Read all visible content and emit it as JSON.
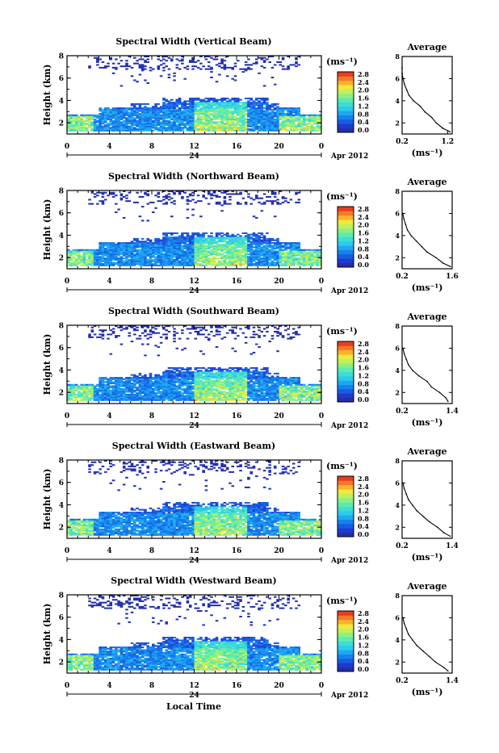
{
  "figure": {
    "date_label": "Apr 2012",
    "day_label": "24",
    "xlabel": "Local Time",
    "x_ticks": [
      "0",
      "4",
      "8",
      "12",
      "16",
      "20",
      "0"
    ],
    "ylabel": "Height (km)",
    "y_ticks": [
      "2",
      "4",
      "6",
      "8"
    ],
    "unit_label": "(ms⁻¹)",
    "colorbar_ticks": [
      "0.0",
      "0.4",
      "0.8",
      "1.2",
      "1.6",
      "2.0",
      "2.4",
      "2.8"
    ],
    "avg_title": "Average",
    "avg_unit": "(ms⁻¹)"
  },
  "chart_data": [
    {
      "type": "heatmap",
      "title": "Spectral Width (Vertical Beam)",
      "xlabel": "",
      "ylabel": "Height (km)",
      "xlim": [
        0,
        24
      ],
      "ylim": [
        1,
        8
      ],
      "colorbar": {
        "label": "(ms⁻¹)",
        "range": [
          0.0,
          2.8
        ]
      },
      "average_profile": {
        "title": "Average",
        "xlabel": "(ms⁻¹)",
        "x_ticks": [
          "0.2",
          "1.2"
        ],
        "xlim": [
          0.2,
          1.3
        ],
        "heights": [
          1.2,
          1.5,
          2.0,
          2.5,
          3.0,
          3.5,
          4.0,
          4.5,
          5.0,
          5.5,
          6.0,
          6.5,
          7.0
        ],
        "values": [
          1.25,
          1.1,
          0.95,
          0.85,
          0.7,
          0.6,
          0.45,
          0.35,
          0.3,
          0.25,
          0.22,
          0.2,
          0.2
        ]
      },
      "seed": 11
    },
    {
      "type": "heatmap",
      "title": "Spectral Width (Northward Beam)",
      "xlabel": "",
      "ylabel": "Height (km)",
      "xlim": [
        0,
        24
      ],
      "ylim": [
        1,
        8
      ],
      "colorbar": {
        "label": "(ms⁻¹)",
        "range": [
          0.0,
          2.8
        ]
      },
      "average_profile": {
        "title": "Average",
        "xlabel": "(ms⁻¹)",
        "x_ticks": [
          "0.2",
          "1.6"
        ],
        "xlim": [
          0.2,
          1.6
        ],
        "heights": [
          1.2,
          1.5,
          2.0,
          2.5,
          3.0,
          3.5,
          4.0,
          4.5,
          5.0,
          5.5,
          6.0
        ],
        "values": [
          1.55,
          1.35,
          1.15,
          0.9,
          0.75,
          0.6,
          0.45,
          0.35,
          0.3,
          0.25,
          0.22
        ]
      },
      "seed": 23
    },
    {
      "type": "heatmap",
      "title": "Spectral Width (Southward Beam)",
      "xlabel": "",
      "ylabel": "Height (km)",
      "xlim": [
        0,
        24
      ],
      "ylim": [
        1,
        8
      ],
      "colorbar": {
        "label": "(ms⁻¹)",
        "range": [
          0.0,
          2.8
        ]
      },
      "average_profile": {
        "title": "Average",
        "xlabel": "(ms⁻¹)",
        "x_ticks": [
          "0.2",
          "1.4"
        ],
        "xlim": [
          0.2,
          1.4
        ],
        "heights": [
          1.2,
          1.5,
          2.0,
          2.5,
          3.0,
          3.5,
          4.0,
          4.5,
          5.0,
          5.5,
          6.0
        ],
        "values": [
          1.3,
          1.25,
          1.1,
          0.9,
          0.8,
          0.6,
          0.45,
          0.35,
          0.3,
          0.25,
          0.22
        ]
      },
      "seed": 37
    },
    {
      "type": "heatmap",
      "title": "Spectral Width (Eastward Beam)",
      "xlabel": "",
      "ylabel": "Height (km)",
      "xlim": [
        0,
        24
      ],
      "ylim": [
        1,
        8
      ],
      "colorbar": {
        "label": "(ms⁻¹)",
        "range": [
          0.0,
          2.8
        ]
      },
      "average_profile": {
        "title": "Average",
        "xlabel": "(ms⁻¹)",
        "x_ticks": [
          "0.2",
          "1.4"
        ],
        "xlim": [
          0.2,
          1.4
        ],
        "heights": [
          1.2,
          1.5,
          2.0,
          2.5,
          3.0,
          3.5,
          4.0,
          4.5,
          5.0,
          5.5,
          6.0
        ],
        "values": [
          1.35,
          1.2,
          1.05,
          0.85,
          0.7,
          0.55,
          0.45,
          0.35,
          0.3,
          0.25,
          0.22
        ]
      },
      "seed": 51
    },
    {
      "type": "heatmap",
      "title": "Spectral Width (Westward Beam)",
      "xlabel": "Local Time",
      "ylabel": "Height (km)",
      "xlim": [
        0,
        24
      ],
      "ylim": [
        1,
        8
      ],
      "colorbar": {
        "label": "(ms⁻¹)",
        "range": [
          0.0,
          2.8
        ]
      },
      "average_profile": {
        "title": "Average",
        "xlabel": "(ms⁻¹)",
        "x_ticks": [
          "0.2",
          "1.4"
        ],
        "xlim": [
          0.2,
          1.4
        ],
        "heights": [
          1.2,
          1.5,
          2.0,
          2.5,
          3.0,
          3.5,
          4.0,
          4.5,
          5.0,
          5.5,
          6.0
        ],
        "values": [
          1.3,
          1.2,
          1.0,
          0.85,
          0.7,
          0.55,
          0.45,
          0.35,
          0.3,
          0.25,
          0.22
        ]
      },
      "seed": 67
    }
  ]
}
